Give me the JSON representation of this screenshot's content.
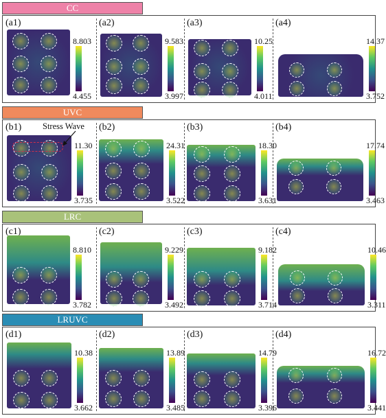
{
  "colors": {
    "CC": "#ee82a8",
    "UVC": "#f08a5d",
    "LRC": "#a9c27a",
    "LRUVC": "#2a8db5",
    "specimen_base": "#3a2b6e",
    "specimen_mid": "#2c7f88",
    "specimen_hot": "#c4d63a"
  },
  "annotation": {
    "text": "Stress Wave"
  },
  "sections": [
    {
      "title": "CC",
      "panels": [
        {
          "label": "(a1)",
          "max": "8.803",
          "min": "4.455"
        },
        {
          "label": "(a2)",
          "max": "9.583",
          "min": "3.997"
        },
        {
          "label": "(a3)",
          "max": "10.25",
          "min": "4.011"
        },
        {
          "label": "(a4)",
          "max": "14.37",
          "min": "3.752"
        }
      ]
    },
    {
      "title": "UVC",
      "panels": [
        {
          "label": "(b1)",
          "max": "11.30",
          "min": "3.735"
        },
        {
          "label": "(b2)",
          "max": "24.31",
          "min": "3.522"
        },
        {
          "label": "(b3)",
          "max": "18.30",
          "min": "3.631"
        },
        {
          "label": "(b4)",
          "max": "17.74",
          "min": "3.463"
        }
      ]
    },
    {
      "title": "LRC",
      "panels": [
        {
          "label": "(c1)",
          "max": "8.810",
          "min": "3.782"
        },
        {
          "label": "(c2)",
          "max": "9.229",
          "min": "3.492"
        },
        {
          "label": "(c3)",
          "max": "9.182",
          "min": "3.714"
        },
        {
          "label": "(c4)",
          "max": "10.46",
          "min": "3.311"
        }
      ]
    },
    {
      "title": "LRUVC",
      "panels": [
        {
          "label": "(d1)",
          "max": "10.38",
          "min": "3.662"
        },
        {
          "label": "(d2)",
          "max": "13.89",
          "min": "3.485"
        },
        {
          "label": "(d3)",
          "max": "14.79",
          "min": "3.396"
        },
        {
          "label": "(d4)",
          "max": "16.72",
          "min": "3.441"
        }
      ]
    }
  ]
}
